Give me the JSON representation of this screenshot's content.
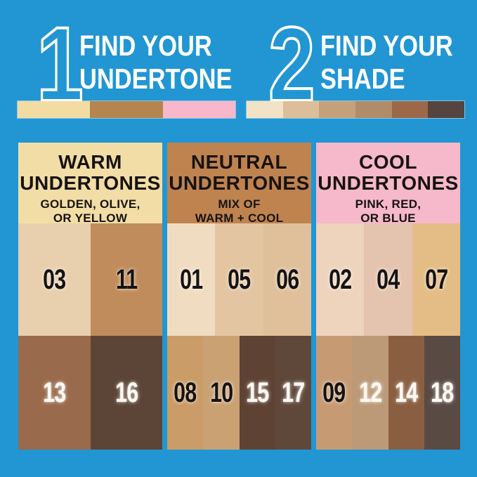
{
  "background_color": "#2196d3",
  "steps": [
    {
      "number": "1",
      "title_line1": "FIND YOUR",
      "title_line2": "UNDERTONE",
      "bar_colors": [
        "#f2dca4",
        "#b4854f",
        "#f8b7cb"
      ]
    },
    {
      "number": "2",
      "title_line1": "FIND YOUR",
      "title_line2": "SHADE",
      "bar_colors": [
        "#f2e3c6",
        "#dcbf9a",
        "#c5a17b",
        "#b18c69",
        "#9c6848",
        "#554440"
      ]
    }
  ],
  "panels": [
    {
      "title_line1": "WARM",
      "title_line2": "UNDERTONES",
      "subtitle_line1": "GOLDEN, OLIVE,",
      "subtitle_line2": "OR YELLOW",
      "header_bg": "#f2dda6",
      "header_text": "#171310",
      "rows": [
        [
          {
            "label": "03",
            "bg": "#e8cfae",
            "text": "#171310"
          },
          {
            "label": "11",
            "bg": "#c08c5c",
            "text": "#171310"
          }
        ],
        [
          {
            "label": "13",
            "bg": "#996a4c",
            "text": "#fdf9f2"
          },
          {
            "label": "16",
            "bg": "#5c4536",
            "text": "#fdf9f2"
          }
        ]
      ]
    },
    {
      "title_line1": "NEUTRAL",
      "title_line2": "UNDERTONES",
      "subtitle_line1": "MIX OF",
      "subtitle_line2": "WARM + COOL",
      "header_bg": "#bf8350",
      "header_text": "#171310",
      "rows": [
        [
          {
            "label": "01",
            "bg": "#f0ddc1",
            "text": "#171310"
          },
          {
            "label": "05",
            "bg": "#e4c5a1",
            "text": "#171310"
          },
          {
            "label": "06",
            "bg": "#e0c09b",
            "text": "#171310"
          }
        ],
        [
          {
            "label": "08",
            "bg": "#ca9c67",
            "text": "#171310"
          },
          {
            "label": "10",
            "bg": "#c9a173",
            "text": "#171310"
          },
          {
            "label": "15",
            "bg": "#5e4233",
            "text": "#fdf9f2"
          },
          {
            "label": "17",
            "bg": "#5f483a",
            "text": "#fdf9f2"
          }
        ]
      ]
    },
    {
      "title_line1": "COOL",
      "title_line2": "UNDERTONES",
      "subtitle_line1": "PINK, RED,",
      "subtitle_line2": "OR BLUE",
      "header_bg": "#f6b8cb",
      "header_text": "#171310",
      "rows": [
        [
          {
            "label": "02",
            "bg": "#eed4bd",
            "text": "#171310"
          },
          {
            "label": "04",
            "bg": "#e4c4ae",
            "text": "#171310"
          },
          {
            "label": "07",
            "bg": "#e4bd86",
            "text": "#171310"
          }
        ],
        [
          {
            "label": "09",
            "bg": "#c69b74",
            "text": "#171310"
          },
          {
            "label": "12",
            "bg": "#bc9a77",
            "text": "#fdf9f2"
          },
          {
            "label": "14",
            "bg": "#8a5f41",
            "text": "#fdf9f2"
          },
          {
            "label": "18",
            "bg": "#594a44",
            "text": "#fdf9f2"
          }
        ]
      ]
    }
  ]
}
